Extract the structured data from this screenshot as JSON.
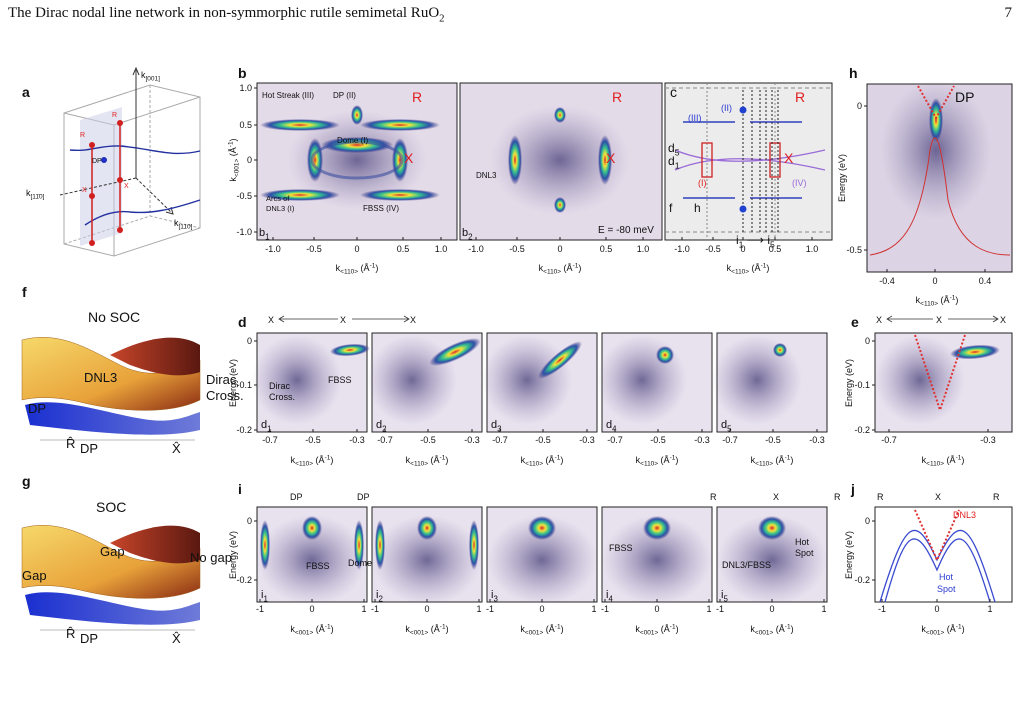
{
  "header": {
    "title": [
      {
        "t": "The Dirac nodal line network in non-symmorphic rutile semimetal RuO"
      },
      {
        "sub": "2"
      }
    ],
    "page": "7"
  },
  "axis_labels": {
    "k110": [
      {
        "t": "k"
      },
      {
        "sub": "<110>"
      },
      {
        "t": " (Å"
      },
      {
        "sup": "-1"
      },
      {
        "t": ")"
      }
    ],
    "k001": [
      {
        "t": "k"
      },
      {
        "sub": "<001>"
      },
      {
        "t": " (Å"
      },
      {
        "sup": "-1"
      },
      {
        "t": ")"
      }
    ],
    "energy": "Energy (eV)"
  },
  "ticks": {
    "kb_x": [
      "-1.0",
      "-0.5",
      "0",
      "0.5",
      "1.0"
    ],
    "kb_y": [
      "1.0",
      "0.5",
      "0",
      "-0.5",
      "-1.0"
    ],
    "h_x": [
      "-0.4",
      "0",
      "0.4"
    ],
    "h_y": [
      "0",
      "-0.5"
    ],
    "d_x": [
      "-0.7",
      "-0.5",
      "-0.3"
    ],
    "e_x": [
      "-0.7",
      "-0.3"
    ],
    "d_y": [
      "0",
      "-0.1",
      "-0.2"
    ],
    "i_x": [
      "-1",
      "0",
      "1"
    ],
    "i_y": [
      "0",
      "-0.2"
    ]
  },
  "panels": {
    "a": [
      "a",
      [
        {
          "t": "k"
        },
        {
          "sub": "[001]"
        }
      ],
      [
        {
          "t": "k"
        },
        {
          "sub": "[11̄0]"
        }
      ],
      [
        {
          "t": "k"
        },
        {
          "sub": "[110]"
        }
      ],
      "R",
      "R",
      "X",
      "X",
      "DP"
    ],
    "b": [
      "b",
      "Hot Streak (III)",
      "DP (II)",
      "Dome (I)",
      "Arcs of",
      "DNL3 (I)",
      "FBSS (IV)",
      "R",
      "X",
      [
        {
          "t": "b"
        },
        {
          "sub": "1"
        }
      ]
    ],
    "b2": [
      "R",
      "X",
      "DNL3",
      "E = -80 meV",
      [
        {
          "t": "b"
        },
        {
          "sub": "2"
        }
      ]
    ],
    "c": [
      "c",
      "R",
      "X",
      "(II)",
      "(III)",
      [
        {
          "t": "d"
        },
        {
          "sub": "5"
        }
      ],
      [
        {
          "t": "d"
        },
        {
          "sub": "1"
        }
      ],
      "(I)",
      "(IV)",
      "f",
      "h",
      [
        {
          "t": "i"
        },
        {
          "sub": "1"
        },
        {
          "t": " ⟶ i"
        },
        {
          "sub": "5"
        }
      ]
    ],
    "h": [
      "h",
      "DP"
    ],
    "f": [
      "f",
      "No SOC",
      "DNL3",
      "Dirac",
      "Cross.",
      "DP",
      "R̂",
      "DP",
      "X̂"
    ],
    "g": [
      "g",
      "SOC",
      "Gap",
      "No gap",
      "Gap",
      "R̂",
      "DP",
      "X̂"
    ],
    "d": [
      "d",
      "X",
      "X",
      "X",
      "Dirac",
      "Cross.",
      "FBSS",
      [
        {
          "t": "d"
        },
        {
          "sub": "1"
        }
      ],
      [
        {
          "t": "d"
        },
        {
          "sub": "2"
        }
      ],
      [
        {
          "t": "d"
        },
        {
          "sub": "3"
        }
      ],
      [
        {
          "t": "d"
        },
        {
          "sub": "4"
        }
      ],
      [
        {
          "t": "d"
        },
        {
          "sub": "5"
        }
      ]
    ],
    "e": [
      "e",
      "X",
      "X",
      "X"
    ],
    "i": [
      "i",
      "DP",
      "DP",
      "R",
      "X",
      "R",
      "FBSS",
      "Dome",
      "FBSS",
      "DNL3/FBSS",
      "Hot",
      "Spot",
      [
        {
          "t": "i"
        },
        {
          "sub": "1"
        }
      ],
      [
        {
          "t": "i"
        },
        {
          "sub": "2"
        }
      ],
      [
        {
          "t": "i"
        },
        {
          "sub": "3"
        }
      ],
      [
        {
          "t": "i"
        },
        {
          "sub": "4"
        }
      ],
      [
        {
          "t": "i"
        },
        {
          "sub": "5"
        }
      ]
    ],
    "j": [
      "j",
      "R",
      "X",
      "R",
      "DNL3",
      "Hot",
      "Spot"
    ]
  }
}
